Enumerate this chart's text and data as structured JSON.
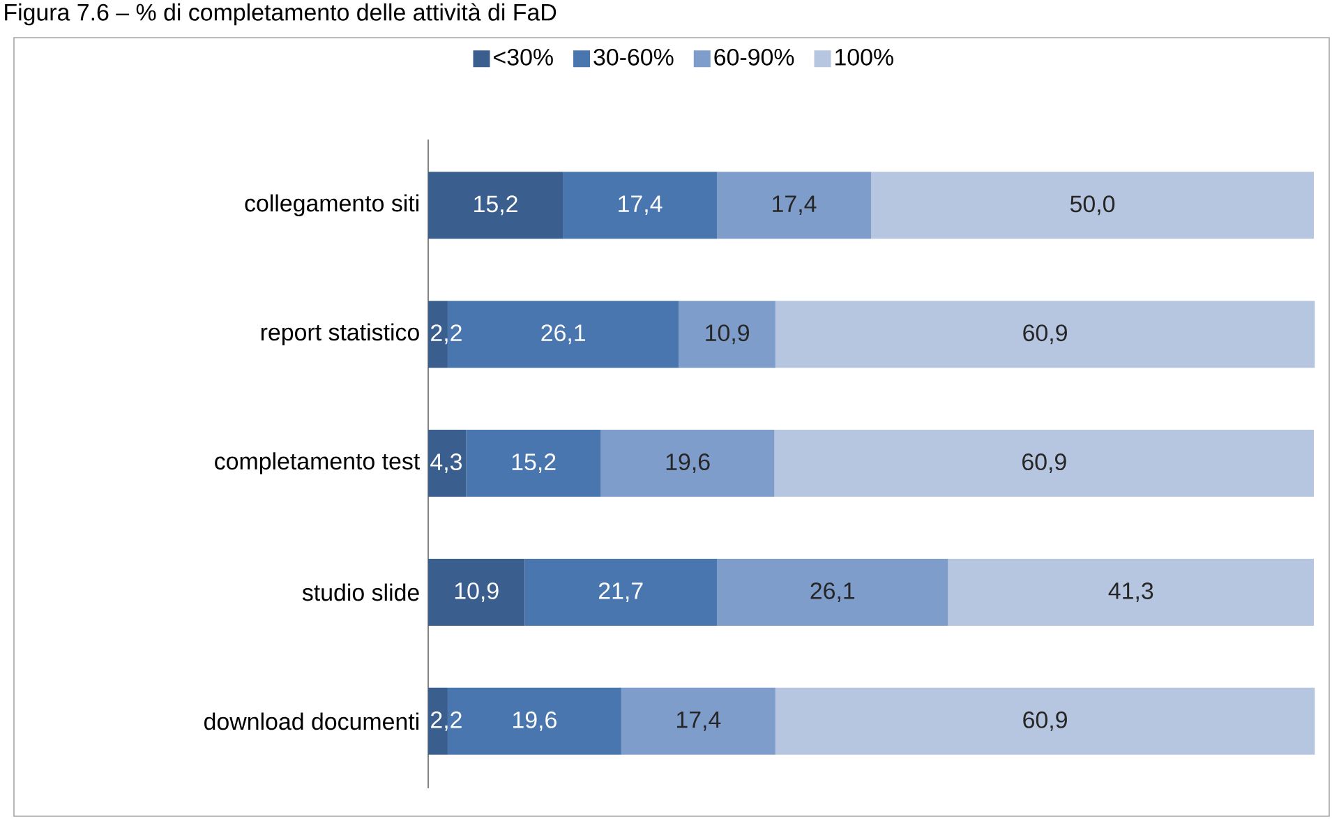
{
  "chart_data": {
    "type": "bar",
    "orientation": "horizontal",
    "stacked": true,
    "title": "Figura 7.6 – % di completamento delle attività di FaD",
    "categories": [
      "collegamento siti",
      "report statistico",
      "completamento test",
      "studio slide",
      "download documenti"
    ],
    "series": [
      {
        "name": "<30%",
        "color": "#3a5f8f",
        "values": [
          15.2,
          2.2,
          4.3,
          10.9,
          2.2
        ],
        "value_labels": [
          "15,2",
          "2,2",
          "4,3",
          "10,9",
          "2,2"
        ]
      },
      {
        "name": "30-60%",
        "color": "#4a76b0",
        "values": [
          17.4,
          26.1,
          15.2,
          21.7,
          19.6
        ],
        "value_labels": [
          "17,4",
          "26,1",
          "15,2",
          "21,7",
          "19,6"
        ]
      },
      {
        "name": "60-90%",
        "color": "#7f9dcb",
        "values": [
          17.4,
          10.9,
          19.6,
          26.1,
          17.4
        ],
        "value_labels": [
          "17,4",
          "10,9",
          "19,6",
          "26,1",
          "17,4"
        ]
      },
      {
        "name": "100%",
        "color": "#b7c6e0",
        "values": [
          50.0,
          60.9,
          60.9,
          41.3,
          60.9
        ],
        "value_labels": [
          "50,0",
          "60,9",
          "60,9",
          "41,3",
          "60,9"
        ]
      }
    ],
    "xlim": [
      0,
      100
    ],
    "tick_labels": "y",
    "legend": "top"
  }
}
